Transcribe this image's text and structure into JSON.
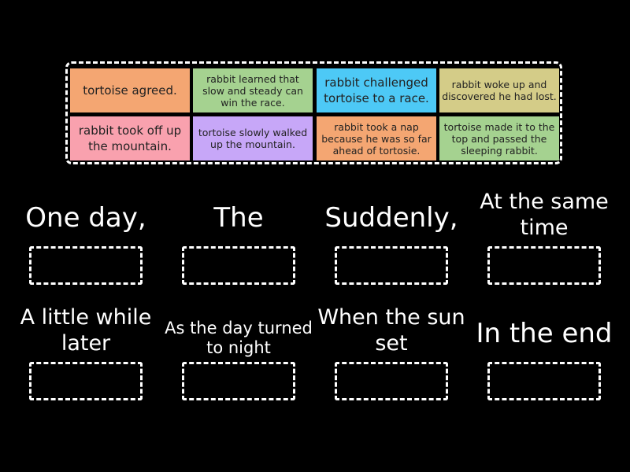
{
  "tiles": [
    {
      "text": "tortoise agreed.",
      "color": "#f4a672"
    },
    {
      "text": "rabbit learned that slow and steady can win the race.",
      "color": "#a5d290"
    },
    {
      "text": "rabbit challenged tortoise to a race.",
      "color": "#4dc9f6"
    },
    {
      "text": "rabbit woke up and discovered he had lost.",
      "color": "#d4cc88"
    },
    {
      "text": "rabbit took off up the mountain.",
      "color": "#f9a1ae"
    },
    {
      "text": "tortoise slowly walked up the mountain.",
      "color": "#c7a7f8"
    },
    {
      "text": "rabbit took a nap because he was so far ahead of tortosie.",
      "color": "#f4a672"
    },
    {
      "text": "tortoise made it to the top and passed the sleeping rabbit.",
      "color": "#a5d290"
    }
  ],
  "slots": [
    {
      "label": "One day,"
    },
    {
      "label": "The"
    },
    {
      "label": "Suddenly,"
    },
    {
      "label": "At the same time"
    },
    {
      "label": "A little while later"
    },
    {
      "label": "As the day turned to night"
    },
    {
      "label": "When the sun set"
    },
    {
      "label": "In the end"
    }
  ]
}
